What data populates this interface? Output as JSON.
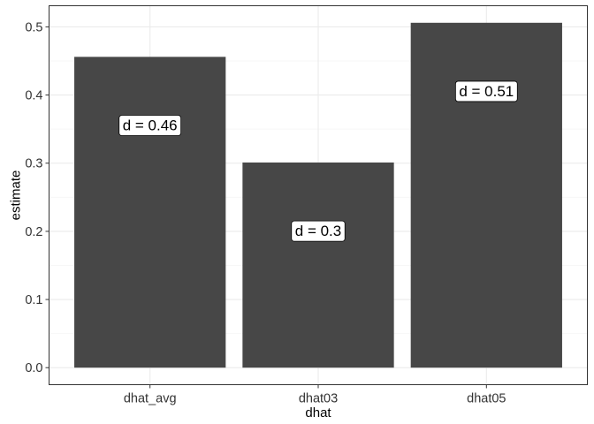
{
  "chart_data": {
    "type": "bar",
    "title": "",
    "xlabel": "dhat",
    "ylabel": "estimate",
    "categories": [
      "dhat_avg",
      "dhat03",
      "dhat05"
    ],
    "values": [
      0.456,
      0.301,
      0.506
    ],
    "bar_labels": [
      "d = 0.46",
      "d = 0.3",
      "d = 0.51"
    ],
    "ylim": [
      -0.025,
      0.531
    ],
    "yticks": [
      0.0,
      0.1,
      0.2,
      0.3,
      0.4,
      0.5
    ],
    "ytick_labels": [
      "0.0",
      "0.1",
      "0.2",
      "0.3",
      "0.4",
      "0.5"
    ],
    "grid": true,
    "legend": "none",
    "colors": {
      "bar": "#474747",
      "grid_major": "#ebebeb",
      "grid_minor": "#f5f5f5",
      "panel_border": "#333333",
      "label_fill": "#ffffff"
    }
  }
}
